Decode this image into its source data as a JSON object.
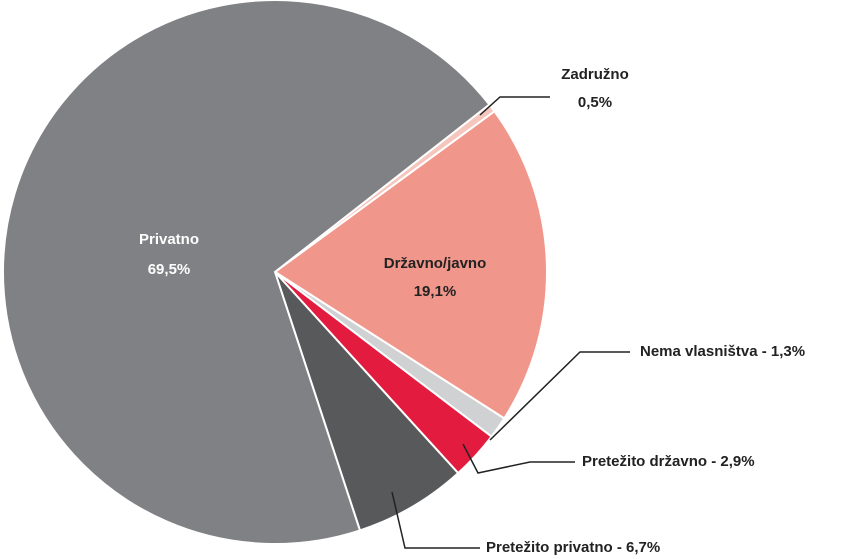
{
  "chart_data": {
    "type": "pie",
    "categories": [
      "Zadružno",
      "Državno/javno",
      "Nema vlasništva",
      "Pretežito državno",
      "Pretežito privatno",
      "Privatno"
    ],
    "values": [
      0.5,
      19.1,
      1.3,
      2.9,
      6.7,
      69.5
    ],
    "value_labels": [
      "0,5%",
      "19,1%",
      "1,3%",
      "2,9%",
      "6,7%",
      "69,5%"
    ],
    "separator": " - ",
    "colors": [
      "#f5c6bd",
      "#f0968a",
      "#d0d1d3",
      "#e31b3f",
      "#58595b",
      "#808184"
    ]
  }
}
